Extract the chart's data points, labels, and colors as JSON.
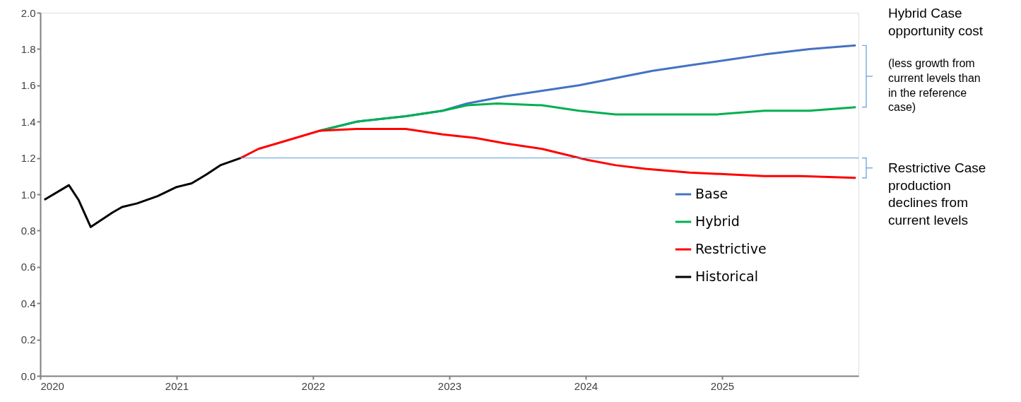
{
  "chart_data": {
    "type": "line",
    "series": [
      {
        "name": "Base",
        "color": "#4472c4",
        "x": [
          2022.05,
          2022.32,
          2022.68,
          2022.95,
          2023.13,
          2023.41,
          2023.68,
          2023.95,
          2024.22,
          2024.49,
          2024.76,
          2025.04,
          2025.31,
          2025.64,
          2025.98
        ],
        "values": [
          1.35,
          1.4,
          1.43,
          1.46,
          1.5,
          1.54,
          1.57,
          1.6,
          1.64,
          1.68,
          1.71,
          1.74,
          1.77,
          1.8,
          1.82
        ]
      },
      {
        "name": "Hybrid",
        "color": "#00b050",
        "x": [
          2022.05,
          2022.32,
          2022.68,
          2022.95,
          2023.13,
          2023.35,
          2023.68,
          2023.95,
          2024.22,
          2024.49,
          2024.96,
          2025.31,
          2025.64,
          2025.98
        ],
        "values": [
          1.35,
          1.4,
          1.43,
          1.46,
          1.49,
          1.5,
          1.49,
          1.46,
          1.44,
          1.44,
          1.44,
          1.46,
          1.46,
          1.48
        ]
      },
      {
        "name": "Restrictive",
        "color": "#ff0000",
        "x": [
          2021.47,
          2021.6,
          2021.78,
          2022.05,
          2022.32,
          2022.68,
          2022.95,
          2023.19,
          2023.41,
          2023.68,
          2024.01,
          2024.22,
          2024.44,
          2024.76,
          2025.04,
          2025.31,
          2025.58,
          2025.98
        ],
        "values": [
          1.2,
          1.25,
          1.29,
          1.35,
          1.36,
          1.36,
          1.33,
          1.31,
          1.28,
          1.25,
          1.19,
          1.16,
          1.14,
          1.12,
          1.11,
          1.1,
          1.1,
          1.09
        ]
      },
      {
        "name": "Historical",
        "color": "#000000",
        "x": [
          2020.03,
          2020.21,
          2020.28,
          2020.37,
          2020.53,
          2020.6,
          2020.71,
          2020.86,
          2021.0,
          2021.11,
          2021.22,
          2021.32,
          2021.47
        ],
        "values": [
          0.97,
          1.05,
          0.97,
          0.82,
          0.9,
          0.93,
          0.95,
          0.99,
          1.04,
          1.06,
          1.11,
          1.16,
          1.2
        ]
      }
    ],
    "xlim": [
      2020,
      2026
    ],
    "xticks": [
      2020,
      2021,
      2022,
      2023,
      2024,
      2025
    ],
    "ylim": [
      0,
      2
    ],
    "yticks": [
      {
        "value": 0,
        "label": "0.0"
      },
      {
        "value": 0.2,
        "label": "0.2"
      },
      {
        "value": 0.4,
        "label": "0.4"
      },
      {
        "value": 0.6,
        "label": "0.6"
      },
      {
        "value": 0.8,
        "label": "0.8"
      },
      {
        "value": 1,
        "label": "1.0"
      },
      {
        "value": 1.2,
        "label": "1.2"
      },
      {
        "value": 1.4,
        "label": "1.4"
      },
      {
        "value": 1.6,
        "label": "1.6"
      },
      {
        "value": 1.8,
        "label": "1.8"
      },
      {
        "value": 2,
        "label": "2.0"
      }
    ],
    "ref_lines": [
      {
        "axis": "y",
        "value": 1.2,
        "color": "#5b9bd5"
      }
    ],
    "annotations": [
      "Hybrid Case opportunity cost",
      "(less growth from current levels than in the reference case)",
      "Restrictive Case production declines from current levels"
    ],
    "grid": false,
    "legend": "bottom right",
    "line_style": "solid",
    "marker": "none"
  }
}
